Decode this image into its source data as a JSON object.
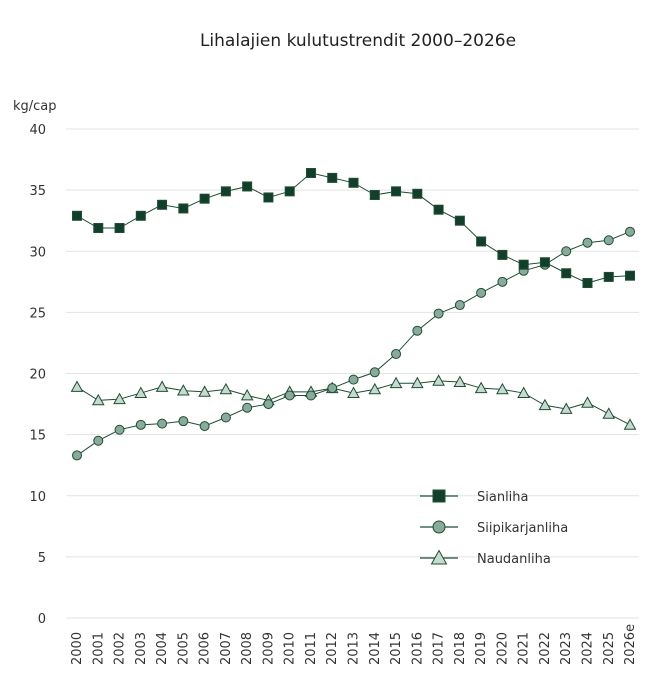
{
  "chart_data": {
    "type": "line",
    "title": "Lihalajien kulutustrendit 2000–2026e",
    "ylabel": "kg/cap",
    "xlabel": "",
    "ylim": [
      0,
      40
    ],
    "yticks": [
      "0",
      "5",
      "10",
      "15",
      "20",
      "25",
      "30",
      "35",
      "40"
    ],
    "grid": true,
    "legend_position": "bottom-right",
    "categories": [
      "2000",
      "2001",
      "2002",
      "2003",
      "2004",
      "2005",
      "2006",
      "2007",
      "2008",
      "2009",
      "2010",
      "2011",
      "2012",
      "2013",
      "2014",
      "2015",
      "2016",
      "2017",
      "2018",
      "2019",
      "2020",
      "2021",
      "2022",
      "2023",
      "2024",
      "2025",
      "2026e"
    ],
    "series": [
      {
        "name": "Sianliha",
        "marker": "square",
        "color": "#123f2a",
        "line_color": "#1f4d35",
        "values": [
          32.9,
          31.9,
          31.9,
          32.9,
          33.8,
          33.5,
          34.3,
          34.9,
          35.3,
          34.4,
          34.9,
          36.4,
          36.0,
          35.6,
          34.6,
          34.9,
          34.7,
          33.4,
          32.5,
          30.8,
          29.7,
          28.9,
          29.1,
          28.2,
          27.4,
          27.9,
          28.0
        ]
      },
      {
        "name": "Siipikarjanliha",
        "marker": "circle",
        "color": "#88ab9c",
        "line_color": "#1f4d35",
        "values": [
          13.3,
          14.5,
          15.4,
          15.8,
          15.9,
          16.1,
          15.7,
          16.4,
          17.2,
          17.5,
          18.2,
          18.2,
          18.8,
          19.5,
          20.1,
          21.6,
          23.5,
          24.9,
          25.6,
          26.6,
          27.5,
          28.4,
          28.9,
          30.0,
          30.7,
          30.9,
          31.6
        ]
      },
      {
        "name": "Naudanliha",
        "marker": "triangle",
        "color": "#c6dbd0",
        "line_color": "#1f4d35",
        "values": [
          18.9,
          17.8,
          17.9,
          18.4,
          18.9,
          18.6,
          18.5,
          18.7,
          18.2,
          17.8,
          18.5,
          18.5,
          18.8,
          18.4,
          18.7,
          19.2,
          19.2,
          19.4,
          19.3,
          18.8,
          18.7,
          18.4,
          17.4,
          17.1,
          17.6,
          16.7,
          15.8
        ]
      }
    ]
  }
}
